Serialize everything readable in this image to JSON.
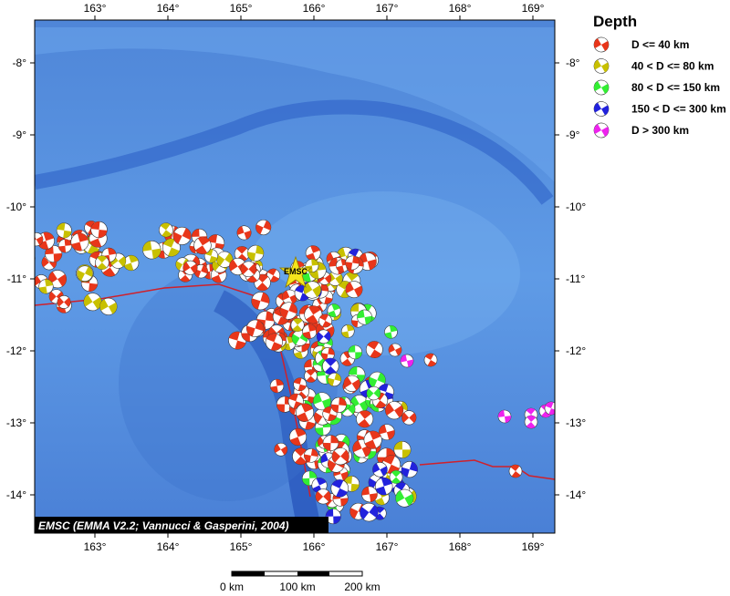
{
  "map": {
    "lon_ticks": [
      {
        "value": 163,
        "label": "163°"
      },
      {
        "value": 164,
        "label": "164°"
      },
      {
        "value": 165,
        "label": "165°"
      },
      {
        "value": 166,
        "label": "166°"
      },
      {
        "value": 167,
        "label": "167°"
      },
      {
        "value": 168,
        "label": "168°"
      },
      {
        "value": 169,
        "label": "169°"
      }
    ],
    "lat_ticks": [
      {
        "value": -8,
        "label": "-8°"
      },
      {
        "value": -9,
        "label": "-9°"
      },
      {
        "value": -10,
        "label": "-10°"
      },
      {
        "value": -11,
        "label": "-11°"
      },
      {
        "value": -12,
        "label": "-12°"
      },
      {
        "value": -13,
        "label": "-13°"
      },
      {
        "value": -14,
        "label": "-14°"
      }
    ],
    "epicenter_label": "EMSC",
    "credit": "EMSC (EMMA V2.2; Vannucci & Gasperini, 2004)",
    "legend": {
      "title": "Depth",
      "items": [
        {
          "label": "D <= 40 km",
          "color": "#e8361a"
        },
        {
          "label": "40 < D <= 80 km",
          "color": "#c8c000"
        },
        {
          "label": "80 < D <= 150 km",
          "color": "#33ee33"
        },
        {
          "label": "150 < D <= 300 km",
          "color": "#2222dd"
        },
        {
          "label": "D > 300 km",
          "color": "#ee22ee"
        }
      ]
    },
    "scale_bar": {
      "labels": [
        "0 km",
        "100 km",
        "200 km"
      ]
    }
  }
}
